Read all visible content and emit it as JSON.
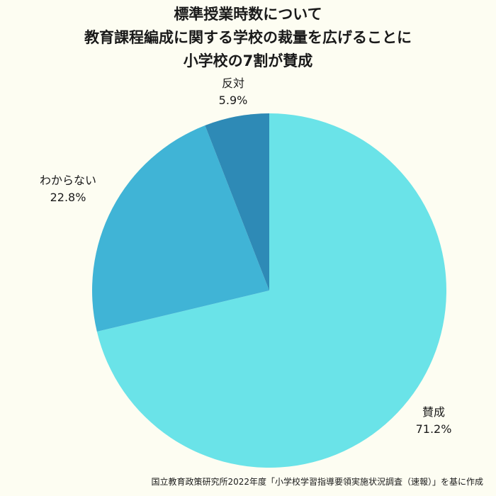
{
  "title_lines": [
    "標準授業時数について",
    "教育課程編成に関する学校の裁量を広げることに",
    "小学校の7割が賛成"
  ],
  "chart_data": {
    "type": "pie",
    "title": "標準授業時数について 教育課程編成に関する学校の裁量を広げることに 小学校の7割が賛成",
    "start": "12 o'clock",
    "direction": "clockwise",
    "slices": [
      {
        "label": "賛成",
        "value": 71.2,
        "value_label": "71.2%",
        "color": "#6ae3e8"
      },
      {
        "label": "わからない",
        "value": 22.8,
        "value_label": "22.8%",
        "color": "#40b4d6"
      },
      {
        "label": "反対",
        "value": 5.9,
        "value_label": "5.9%",
        "color": "#2e8ab6"
      }
    ]
  },
  "source": "国立教育政策研究所2022年度「小学校学習指導要領実施状況調査（速報）」を基に作成"
}
